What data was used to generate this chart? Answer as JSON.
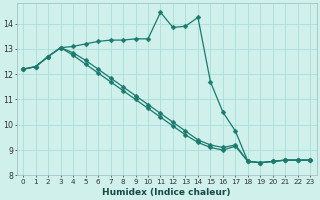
{
  "xlabel": "Humidex (Indice chaleur)",
  "bg_color": "#cff0eb",
  "grid_color": "#aaddda",
  "line_color": "#1a7a6e",
  "xlim_min": -0.5,
  "xlim_max": 23.5,
  "ylim_min": 8.0,
  "ylim_max": 14.8,
  "yticks": [
    8,
    9,
    10,
    11,
    12,
    13,
    14
  ],
  "xticks": [
    0,
    1,
    2,
    3,
    4,
    5,
    6,
    7,
    8,
    9,
    10,
    11,
    12,
    13,
    14,
    15,
    16,
    17,
    18,
    19,
    20,
    21,
    22,
    23
  ],
  "line1_x": [
    0,
    1,
    2,
    3,
    4,
    5,
    6,
    7,
    8,
    9,
    10,
    11,
    12,
    13,
    14,
    15,
    16,
    17,
    18,
    19,
    20,
    21,
    22,
    23
  ],
  "line1_y": [
    12.2,
    12.3,
    12.7,
    13.05,
    13.1,
    13.2,
    13.3,
    13.35,
    13.35,
    13.4,
    13.4,
    14.45,
    13.85,
    13.9,
    14.25,
    11.7,
    10.5,
    9.75,
    8.55,
    8.5,
    8.55,
    8.6,
    8.6,
    8.6
  ],
  "line2_x": [
    0,
    1,
    2,
    3,
    4,
    5,
    6,
    7,
    8,
    9,
    10,
    11,
    12,
    13,
    14,
    15,
    16,
    17,
    18,
    19,
    20,
    21,
    22,
    23
  ],
  "line2_y": [
    12.2,
    12.3,
    12.7,
    13.05,
    12.75,
    12.4,
    12.05,
    11.7,
    11.35,
    11.0,
    10.65,
    10.3,
    9.95,
    9.6,
    9.3,
    9.1,
    9.0,
    9.15,
    8.55,
    8.5,
    8.55,
    8.6,
    8.6,
    8.6
  ],
  "line3_x": [
    0,
    1,
    2,
    3,
    4,
    5,
    6,
    7,
    8,
    9,
    10,
    11,
    12,
    13,
    14,
    15,
    16,
    17,
    18,
    19,
    20,
    21,
    22,
    23
  ],
  "line3_y": [
    12.2,
    12.3,
    12.7,
    13.05,
    12.85,
    12.55,
    12.2,
    11.85,
    11.5,
    11.15,
    10.8,
    10.45,
    10.1,
    9.75,
    9.4,
    9.2,
    9.1,
    9.2,
    8.55,
    8.5,
    8.55,
    8.6,
    8.6,
    8.6
  ],
  "tick_fontsize": 5.2,
  "xlabel_fontsize": 6.5,
  "marker_size": 2.5,
  "line_width": 0.9
}
